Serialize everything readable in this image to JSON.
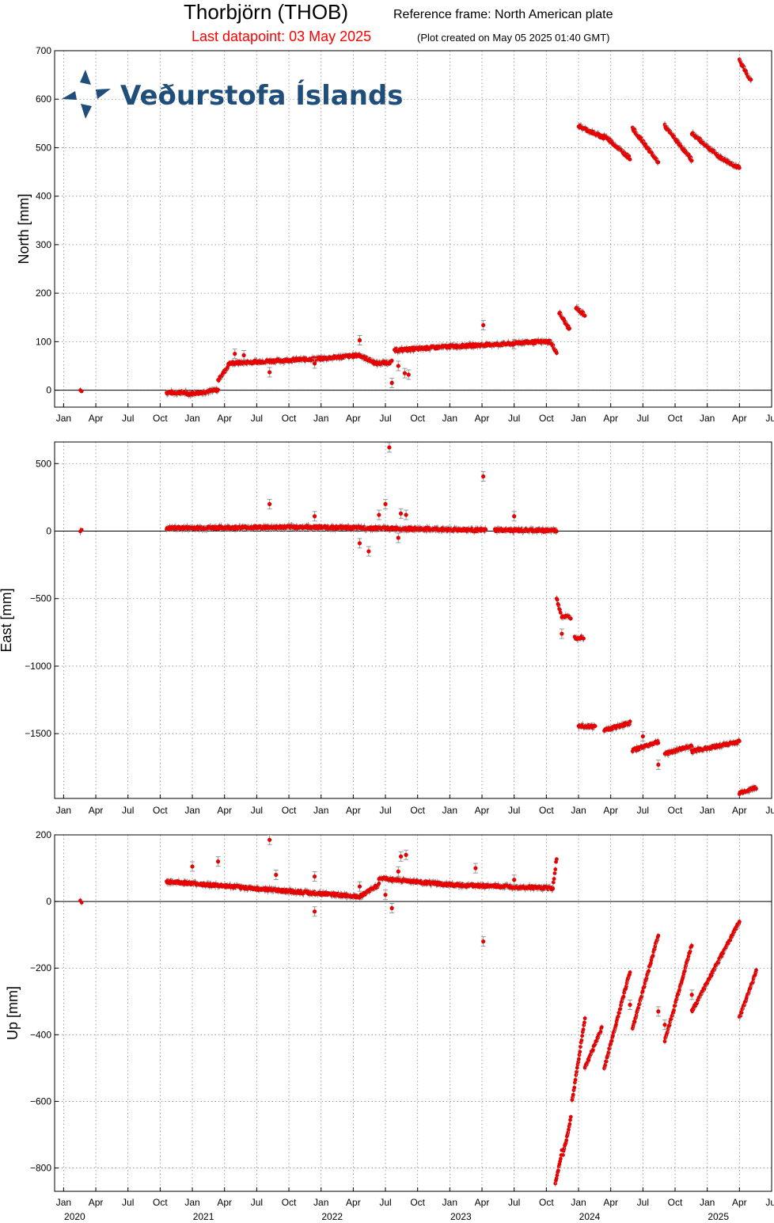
{
  "title": "Thorbjörn (THOB)",
  "reference_frame": "Reference frame: North American plate",
  "last_datapoint": "Last datapoint: 03 May 2025",
  "created": "(Plot created on May 05 2025 01:40 GMT)",
  "logo_text": "Veðurstofa Íslands",
  "colors": {
    "points": "#e60000",
    "logo": "#1e4e79",
    "subtitle": "#ff0000",
    "errorbars": "#999999"
  },
  "chart_data": [
    {
      "type": "scatter",
      "ylabel": "North [mm]",
      "ylim": [
        -35,
        700
      ],
      "yticks": [
        0,
        100,
        200,
        300,
        400,
        500,
        600,
        700
      ],
      "grid": true,
      "segments": [
        {
          "x": [
            2020.13,
            2020.14
          ],
          "y": [
            0,
            0
          ]
        },
        {
          "x": [
            2020.8,
            2020.95
          ],
          "y": [
            -5,
            -5
          ]
        },
        {
          "x": [
            2020.95,
            2021.1
          ],
          "y": [
            -8,
            -4
          ]
        },
        {
          "x": [
            2021.1,
            2021.2
          ],
          "y": [
            -3,
            0
          ]
        },
        {
          "x": [
            2021.2,
            2021.28
          ],
          "y": [
            20,
            50
          ]
        },
        {
          "x": [
            2021.28,
            2021.6
          ],
          "y": [
            55,
            60
          ]
        },
        {
          "x": [
            2021.6,
            2022.0
          ],
          "y": [
            60,
            65
          ]
        },
        {
          "x": [
            2022.0,
            2022.3
          ],
          "y": [
            65,
            72
          ]
        },
        {
          "x": [
            2022.3,
            2022.43
          ],
          "y": [
            72,
            55
          ]
        },
        {
          "x": [
            2022.43,
            2022.55
          ],
          "y": [
            55,
            58
          ]
        },
        {
          "x": [
            2022.57,
            2023.0
          ],
          "y": [
            82,
            90
          ]
        },
        {
          "x": [
            2023.0,
            2023.5
          ],
          "y": [
            90,
            96
          ]
        },
        {
          "x": [
            2023.5,
            2023.78
          ],
          "y": [
            98,
            100
          ]
        },
        {
          "x": [
            2023.78,
            2023.83
          ],
          "y": [
            100,
            78
          ]
        },
        {
          "x": [
            2023.85,
            2023.93
          ],
          "y": [
            160,
            125
          ]
        },
        {
          "x": [
            2023.98,
            2024.05
          ],
          "y": [
            170,
            155
          ]
        },
        {
          "x": [
            2024.0,
            2024.2
          ],
          "y": [
            545,
            520
          ]
        },
        {
          "x": [
            2024.2,
            2024.4
          ],
          "y": [
            525,
            478
          ]
        },
        {
          "x": [
            2024.42,
            2024.62
          ],
          "y": [
            540,
            470
          ]
        },
        {
          "x": [
            2024.67,
            2024.88
          ],
          "y": [
            545,
            475
          ]
        },
        {
          "x": [
            2024.88,
            2025.1
          ],
          "y": [
            530,
            480
          ]
        },
        {
          "x": [
            2025.1,
            2025.25
          ],
          "y": [
            480,
            458
          ]
        },
        {
          "x": [
            2025.25,
            2025.34
          ],
          "y": [
            680,
            638
          ]
        }
      ],
      "outliers": [
        [
          2021.33,
          75
        ],
        [
          2021.4,
          72
        ],
        [
          2021.6,
          37
        ],
        [
          2021.95,
          55
        ],
        [
          2022.3,
          103
        ],
        [
          2022.55,
          15
        ],
        [
          2022.6,
          50
        ],
        [
          2022.65,
          35
        ],
        [
          2022.68,
          32
        ],
        [
          2023.26,
          134
        ],
        [
          2023.5,
          95
        ]
      ]
    },
    {
      "type": "scatter",
      "ylabel": "East [mm]",
      "ylim": [
        -1980,
        660
      ],
      "yticks": [
        500,
        0,
        -500,
        -1000,
        -1500
      ],
      "grid": true,
      "segments": [
        {
          "x": [
            2020.13,
            2020.14
          ],
          "y": [
            0,
            0
          ]
        },
        {
          "x": [
            2020.8,
            2021.9
          ],
          "y": [
            22,
            30
          ]
        },
        {
          "x": [
            2021.9,
            2023.28
          ],
          "y": [
            30,
            7
          ]
        },
        {
          "x": [
            2023.35,
            2023.83
          ],
          "y": [
            7,
            5
          ]
        },
        {
          "x": [
            2023.83,
            2023.86
          ],
          "y": [
            -500,
            -600
          ]
        },
        {
          "x": [
            2023.87,
            2023.94
          ],
          "y": [
            -630,
            -640
          ]
        },
        {
          "x": [
            2023.97,
            2024.04
          ],
          "y": [
            -790,
            -785
          ]
        },
        {
          "x": [
            2024.0,
            2024.13
          ],
          "y": [
            -1440,
            -1450
          ]
        },
        {
          "x": [
            2024.2,
            2024.4
          ],
          "y": [
            -1475,
            -1420
          ]
        },
        {
          "x": [
            2024.42,
            2024.62
          ],
          "y": [
            -1625,
            -1560
          ]
        },
        {
          "x": [
            2024.67,
            2024.88
          ],
          "y": [
            -1650,
            -1590
          ]
        },
        {
          "x": [
            2024.88,
            2025.25
          ],
          "y": [
            -1630,
            -1560
          ]
        },
        {
          "x": [
            2025.25,
            2025.38
          ],
          "y": [
            -1940,
            -1900
          ]
        }
      ],
      "outliers": [
        [
          2021.6,
          200
        ],
        [
          2021.95,
          110
        ],
        [
          2022.3,
          -90
        ],
        [
          2022.37,
          -150
        ],
        [
          2022.45,
          120
        ],
        [
          2022.5,
          200
        ],
        [
          2022.53,
          620
        ],
        [
          2022.6,
          -50
        ],
        [
          2022.62,
          130
        ],
        [
          2022.66,
          120
        ],
        [
          2023.26,
          405
        ],
        [
          2023.5,
          110
        ],
        [
          2023.87,
          -760
        ],
        [
          2024.5,
          -1520
        ],
        [
          2024.62,
          -1730
        ]
      ]
    },
    {
      "type": "scatter",
      "ylabel": "Up [mm]",
      "ylim": [
        -870,
        200
      ],
      "yticks": [
        200,
        0,
        -200,
        -400,
        -600,
        -800
      ],
      "xlabel": "",
      "grid": true,
      "x_month_ticks": [
        "Jan",
        "Apr",
        "Jul",
        "Oct"
      ],
      "x_year_labels": [
        "2020",
        "2021",
        "2022",
        "2023",
        "2024",
        "2025"
      ],
      "xlim": [
        2019.93,
        2025.5
      ],
      "segments": [
        {
          "x": [
            2020.13,
            2020.14
          ],
          "y": [
            0,
            0
          ]
        },
        {
          "x": [
            2020.8,
            2021.95
          ],
          "y": [
            60,
            25
          ]
        },
        {
          "x": [
            2021.95,
            2022.3
          ],
          "y": [
            25,
            15
          ]
        },
        {
          "x": [
            2022.3,
            2022.45
          ],
          "y": [
            15,
            50
          ]
        },
        {
          "x": [
            2022.45,
            2022.58
          ],
          "y": [
            70,
            65
          ]
        },
        {
          "x": [
            2022.58,
            2023.0
          ],
          "y": [
            65,
            50
          ]
        },
        {
          "x": [
            2023.0,
            2023.8
          ],
          "y": [
            50,
            40
          ]
        },
        {
          "x": [
            2023.8,
            2023.83
          ],
          "y": [
            40,
            130
          ]
        },
        {
          "x": [
            2023.82,
            2023.87
          ],
          "y": [
            -850,
            -750
          ]
        },
        {
          "x": [
            2023.88,
            2023.94
          ],
          "y": [
            -760,
            -650
          ]
        },
        {
          "x": [
            2023.95,
            2024.05
          ],
          "y": [
            -600,
            -350
          ]
        },
        {
          "x": [
            2024.05,
            2024.18
          ],
          "y": [
            -500,
            -380
          ]
        },
        {
          "x": [
            2024.2,
            2024.4
          ],
          "y": [
            -500,
            -210
          ]
        },
        {
          "x": [
            2024.42,
            2024.62
          ],
          "y": [
            -380,
            -100
          ]
        },
        {
          "x": [
            2024.67,
            2024.88
          ],
          "y": [
            -420,
            -130
          ]
        },
        {
          "x": [
            2024.88,
            2025.25
          ],
          "y": [
            -330,
            -60
          ]
        },
        {
          "x": [
            2025.25,
            2025.38
          ],
          "y": [
            -350,
            -210
          ]
        }
      ],
      "outliers": [
        [
          2021.0,
          105
        ],
        [
          2021.2,
          120
        ],
        [
          2021.6,
          185
        ],
        [
          2021.65,
          80
        ],
        [
          2021.95,
          75
        ],
        [
          2021.95,
          -30
        ],
        [
          2022.3,
          45
        ],
        [
          2022.5,
          20
        ],
        [
          2022.55,
          -20
        ],
        [
          2022.6,
          90
        ],
        [
          2022.62,
          135
        ],
        [
          2022.66,
          140
        ],
        [
          2023.2,
          100
        ],
        [
          2023.26,
          -120
        ],
        [
          2023.5,
          65
        ],
        [
          2024.4,
          -310
        ],
        [
          2024.62,
          -330
        ],
        [
          2024.67,
          -370
        ],
        [
          2024.88,
          -280
        ]
      ]
    }
  ]
}
